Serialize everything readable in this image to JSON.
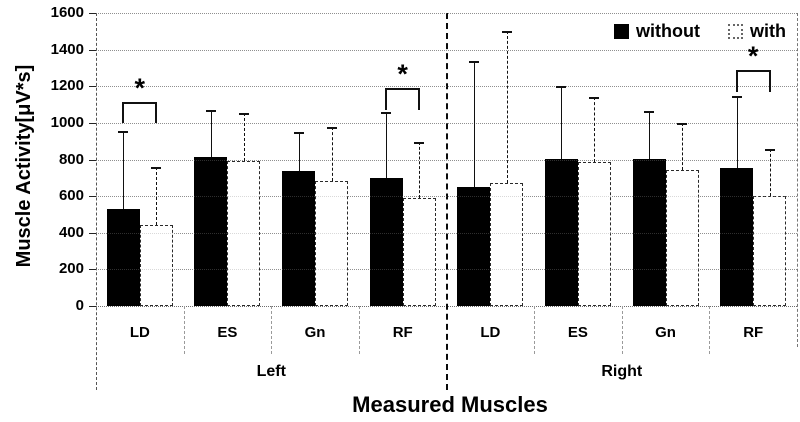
{
  "chart_data": {
    "type": "bar",
    "title": "",
    "ylabel": "Muscle Activity[μV*s]",
    "xlabel": "Measured Muscles",
    "ylim": [
      0,
      1600
    ],
    "ytick_step": 200,
    "grid": true,
    "legend_position": "top-right",
    "group_labels": [
      "Left",
      "Right"
    ],
    "categories": [
      "LD",
      "ES",
      "Gn",
      "RF",
      "LD",
      "ES",
      "Gn",
      "RF"
    ],
    "series": [
      {
        "name": "without",
        "fill": "#000000",
        "values": [
          530,
          815,
          735,
          700,
          650,
          805,
          805,
          755
        ],
        "error_tops": [
          955,
          1070,
          950,
          1060,
          1340,
          1200,
          1065,
          1145
        ]
      },
      {
        "name": "with",
        "fill": "#ffffff",
        "values": [
          440,
          790,
          685,
          590,
          670,
          785,
          745,
          600
        ],
        "error_tops": [
          760,
          1055,
          975,
          895,
          1500,
          1140,
          1000,
          855
        ]
      }
    ],
    "significance": [
      {
        "category_index": 0,
        "symbol": "*",
        "bracket_top": 1115,
        "leg_bottom": 1000
      },
      {
        "category_index": 3,
        "symbol": "*",
        "bracket_top": 1190,
        "leg_bottom": 1070
      },
      {
        "category_index": 7,
        "symbol": "*",
        "bracket_top": 1290,
        "leg_bottom": 1170
      }
    ]
  }
}
